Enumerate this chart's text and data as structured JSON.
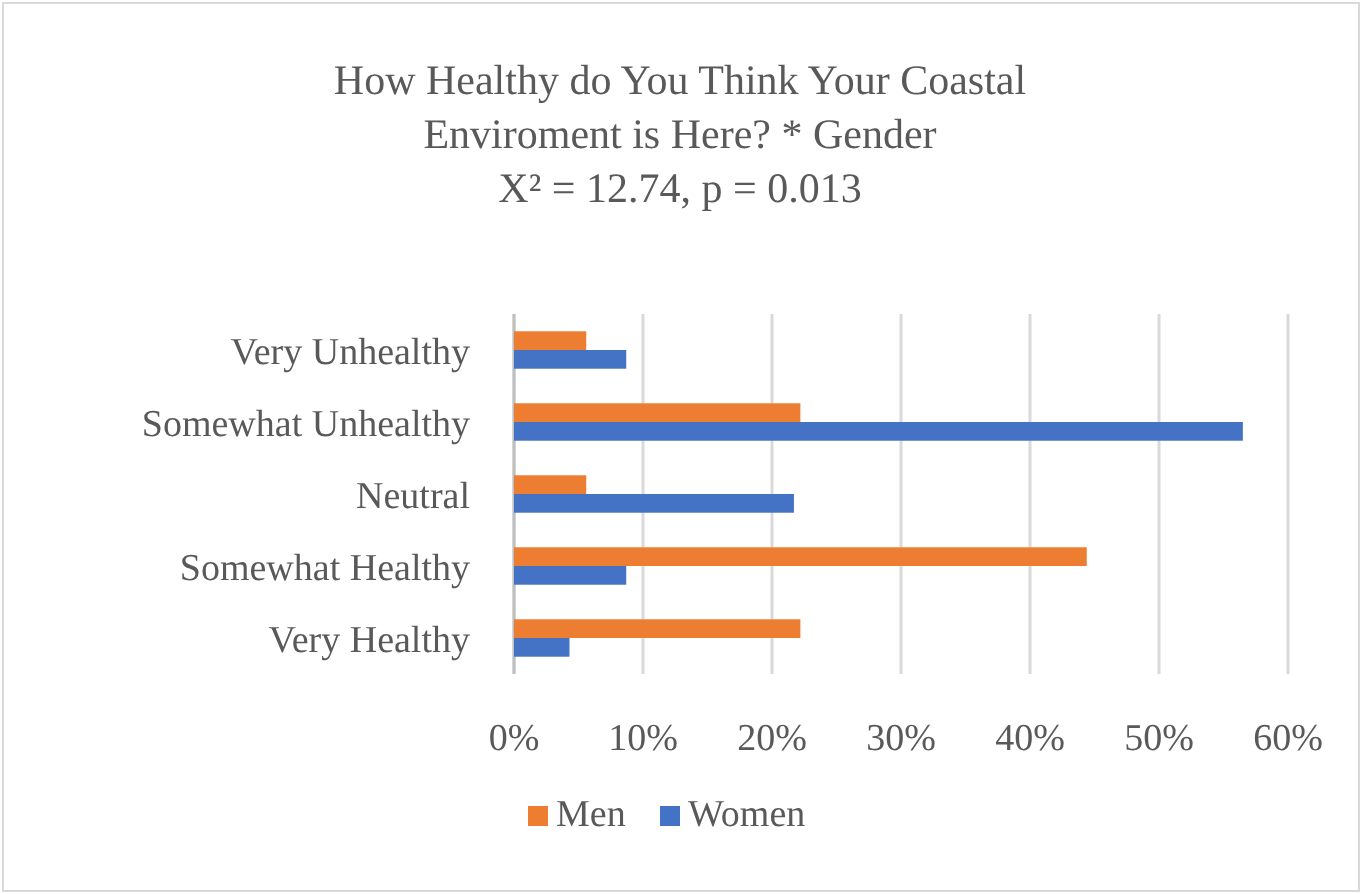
{
  "chart_data": {
    "type": "bar",
    "orientation": "horizontal",
    "title": "How Healthy do You Think Your Coastal Enviroment is Here? * Gender",
    "subtitle": "X² = 12.74, p = 0.013",
    "categories": [
      "Very Unhealthy",
      "Somewhat Unhealthy",
      "Neutral",
      "Somewhat Healthy",
      "Very Healthy"
    ],
    "series": [
      {
        "name": "Men",
        "color": "#ed7d31",
        "values": [
          5.6,
          22.2,
          5.6,
          44.4,
          22.2
        ]
      },
      {
        "name": "Women",
        "color": "#4472c4",
        "values": [
          8.7,
          56.5,
          21.7,
          8.7,
          4.3
        ]
      }
    ],
    "xlim": [
      0,
      60
    ],
    "xticks": [
      {
        "value": 0,
        "label": "0%"
      },
      {
        "value": 10,
        "label": "10%"
      },
      {
        "value": 20,
        "label": "20%"
      },
      {
        "value": 30,
        "label": "30%"
      },
      {
        "value": 40,
        "label": "40%"
      },
      {
        "value": 50,
        "label": "50%"
      },
      {
        "value": 60,
        "label": "60%"
      }
    ],
    "grid": "x",
    "legend": "bottom"
  }
}
